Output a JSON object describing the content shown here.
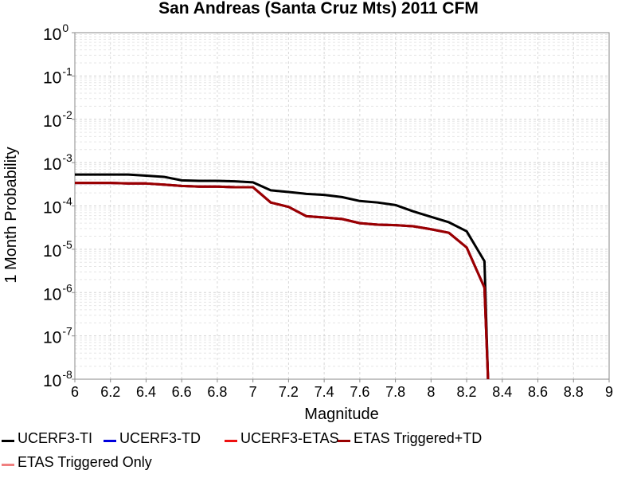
{
  "chart_data": {
    "type": "line",
    "title": "San Andreas (Santa Cruz Mts) 2011 CFM",
    "xlabel": "Magnitude",
    "ylabel": "1 Month Probability",
    "xscale": "linear",
    "yscale": "log",
    "xlim": [
      6,
      9
    ],
    "ylim": [
      1e-08,
      1
    ],
    "x_ticks": [
      "6",
      "6.2",
      "6.4",
      "6.6",
      "6.8",
      "7",
      "7.2",
      "7.4",
      "7.6",
      "7.8",
      "8",
      "8.2",
      "8.4",
      "8.6",
      "8.8",
      "9"
    ],
    "y_ticks": [
      {
        "base": "10",
        "exp": "0",
        "value": 1
      },
      {
        "base": "10",
        "exp": "-1",
        "value": 0.1
      },
      {
        "base": "10",
        "exp": "-2",
        "value": 0.01
      },
      {
        "base": "10",
        "exp": "-3",
        "value": 0.001
      },
      {
        "base": "10",
        "exp": "-4",
        "value": 0.0001
      },
      {
        "base": "10",
        "exp": "-5",
        "value": 1e-05
      },
      {
        "base": "10",
        "exp": "-6",
        "value": 1e-06
      },
      {
        "base": "10",
        "exp": "-7",
        "value": 1e-07
      },
      {
        "base": "10",
        "exp": "-8",
        "value": 1e-08
      }
    ],
    "grid": true,
    "legend_position": "bottom",
    "series": [
      {
        "name": "UCERF3-TI",
        "color": "#000000",
        "x": [
          6.0,
          6.1,
          6.2,
          6.3,
          6.4,
          6.5,
          6.6,
          6.7,
          6.8,
          6.9,
          7.0,
          7.1,
          7.2,
          7.3,
          7.4,
          7.5,
          7.6,
          7.7,
          7.8,
          7.9,
          8.0,
          8.1,
          8.2,
          8.3,
          8.32
        ],
        "y": [
          0.00053,
          0.00053,
          0.00053,
          0.00053,
          0.0005,
          0.00047,
          0.00039,
          0.00038,
          0.00038,
          0.00037,
          0.00035,
          0.00023,
          0.00021,
          0.00019,
          0.00018,
          0.00016,
          0.00013,
          0.00012,
          0.000105,
          7.5e-05,
          5.6e-05,
          4.2e-05,
          2.6e-05,
          5.3e-06,
          1e-08
        ]
      },
      {
        "name": "UCERF3-TD",
        "color": "#0000dd",
        "x": [
          6.0,
          6.1,
          6.2,
          6.3,
          6.4,
          6.5,
          6.6,
          6.7,
          6.8,
          6.9,
          7.0,
          7.1,
          7.2,
          7.3,
          7.4,
          7.5,
          7.6,
          7.7,
          7.8,
          7.9,
          8.0,
          8.1,
          8.2,
          8.3,
          8.32
        ],
        "y": [
          0.00034,
          0.00034,
          0.00034,
          0.00033,
          0.00033,
          0.00031,
          0.00029,
          0.00028,
          0.00028,
          0.00027,
          0.00027,
          0.00012,
          9.5e-05,
          5.8e-05,
          5.4e-05,
          5e-05,
          4e-05,
          3.7e-05,
          3.6e-05,
          3.4e-05,
          2.9e-05,
          2.4e-05,
          1.1e-05,
          1.3e-06,
          1e-08
        ]
      },
      {
        "name": "UCERF3-ETAS",
        "color": "#ee1111",
        "x": [
          6.0,
          6.1,
          6.2,
          6.3,
          6.4,
          6.5,
          6.6,
          6.7,
          6.8,
          6.9,
          7.0,
          7.1,
          7.2,
          7.3,
          7.4,
          7.5,
          7.6,
          7.7,
          7.8,
          7.9,
          8.0,
          8.1,
          8.2,
          8.3,
          8.32
        ],
        "y": [
          0.00034,
          0.00034,
          0.00034,
          0.00033,
          0.00033,
          0.00031,
          0.00029,
          0.00028,
          0.00028,
          0.00027,
          0.00027,
          0.00012,
          9.5e-05,
          5.8e-05,
          5.4e-05,
          5e-05,
          4e-05,
          3.7e-05,
          3.6e-05,
          3.4e-05,
          2.9e-05,
          2.4e-05,
          1.1e-05,
          1.3e-06,
          1e-08
        ]
      },
      {
        "name": "ETAS Triggered+TD",
        "color": "#990000",
        "x": [
          6.0,
          6.1,
          6.2,
          6.3,
          6.4,
          6.5,
          6.6,
          6.7,
          6.8,
          6.9,
          7.0,
          7.1,
          7.2,
          7.3,
          7.4,
          7.5,
          7.6,
          7.7,
          7.8,
          7.9,
          8.0,
          8.1,
          8.2,
          8.3,
          8.32
        ],
        "y": [
          0.00034,
          0.00034,
          0.00034,
          0.00033,
          0.00033,
          0.00031,
          0.00029,
          0.00028,
          0.00028,
          0.00027,
          0.00027,
          0.00012,
          9.5e-05,
          5.8e-05,
          5.4e-05,
          5e-05,
          4e-05,
          3.7e-05,
          3.6e-05,
          3.4e-05,
          2.9e-05,
          2.4e-05,
          1.1e-05,
          1.3e-06,
          1e-08
        ]
      },
      {
        "name": "ETAS Triggered Only",
        "color": "#f08080",
        "x": [],
        "y": []
      }
    ]
  }
}
